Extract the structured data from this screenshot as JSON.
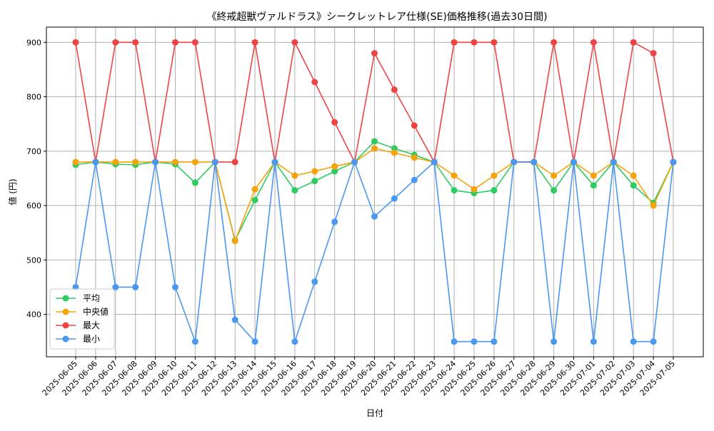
{
  "chart_data": {
    "type": "line",
    "title": "《終戒超獣ヴァルドラス》シークレットレア仕様(SE)価格推移(過去30日間)",
    "xlabel": "日付",
    "ylabel": "値 (円)",
    "ylim": [
      322,
      928
    ],
    "yticks": [
      400,
      500,
      600,
      700,
      800,
      900
    ],
    "grid": true,
    "legend_position": "lower-left",
    "categories": [
      "2025-06-05",
      "2025-06-06",
      "2025-06-07",
      "2025-06-08",
      "2025-06-09",
      "2025-06-10",
      "2025-06-11",
      "2025-06-12",
      "2025-06-13",
      "2025-06-14",
      "2025-06-15",
      "2025-06-16",
      "2025-06-17",
      "2025-06-18",
      "2025-06-19",
      "2025-06-20",
      "2025-06-21",
      "2025-06-22",
      "2025-06-23",
      "2025-06-24",
      "2025-06-25",
      "2025-06-26",
      "2025-06-27",
      "2025-06-28",
      "2025-06-29",
      "2025-06-30",
      "2025-07-01",
      "2025-07-02",
      "2025-07-03",
      "2025-07-04",
      "2025-07-05"
    ],
    "series": [
      {
        "name": "平均",
        "color": "#2ecc5f",
        "values": [
          675,
          680,
          676,
          675,
          680,
          676,
          642,
          680,
          536,
          610,
          680,
          628,
          645,
          663,
          680,
          718,
          705,
          693,
          680,
          628,
          623,
          628,
          680,
          680,
          628,
          680,
          637,
          680,
          637,
          605,
          680
        ]
      },
      {
        "name": "中央値",
        "color": "#f5a30a",
        "values": [
          680,
          680,
          680,
          680,
          680,
          680,
          680,
          680,
          535,
          630,
          680,
          655,
          663,
          672,
          680,
          705,
          697,
          688,
          680,
          655,
          630,
          655,
          680,
          680,
          655,
          680,
          655,
          680,
          655,
          600,
          680
        ]
      },
      {
        "name": "最大",
        "color": "#ef4444",
        "values": [
          900,
          680,
          900,
          900,
          680,
          900,
          900,
          680,
          680,
          900,
          680,
          900,
          827,
          753,
          680,
          880,
          813,
          747,
          680,
          900,
          900,
          900,
          680,
          680,
          900,
          680,
          900,
          680,
          900,
          880,
          680
        ]
      },
      {
        "name": "最小",
        "color": "#4a98f0",
        "values": [
          450,
          680,
          450,
          450,
          680,
          450,
          350,
          680,
          390,
          350,
          680,
          350,
          460,
          570,
          680,
          580,
          613,
          647,
          680,
          350,
          350,
          350,
          680,
          680,
          350,
          680,
          350,
          680,
          350,
          350,
          680
        ]
      }
    ]
  }
}
